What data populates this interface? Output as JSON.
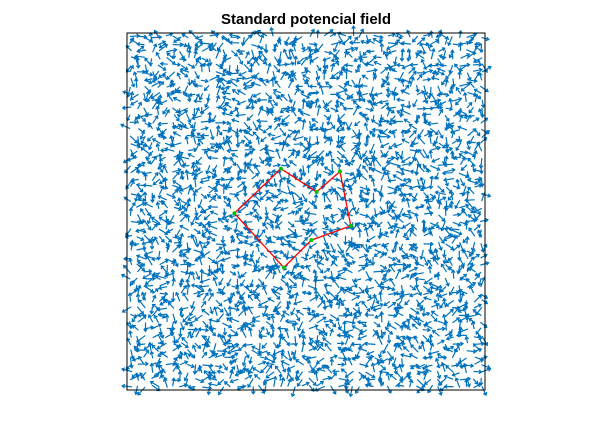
{
  "chart_data": {
    "type": "quiver",
    "title": "Standard potencial field",
    "xlim": [
      0,
      1
    ],
    "ylim": [
      0,
      1
    ],
    "axis_ticks": false,
    "grid": false,
    "box": true,
    "field": {
      "grid_nx": 50,
      "grid_ny": 50,
      "arrow_length": 0.026,
      "direction": "random",
      "random_seed": 12345,
      "color": "#0072bd"
    },
    "polygon": {
      "color": "#ff0000",
      "vertex_color": "#00c000",
      "closed": true,
      "vertices": [
        {
          "x": 0.43,
          "y": 0.62
        },
        {
          "x": 0.53,
          "y": 0.555
        },
        {
          "x": 0.595,
          "y": 0.612
        },
        {
          "x": 0.625,
          "y": 0.46
        },
        {
          "x": 0.515,
          "y": 0.42
        },
        {
          "x": 0.438,
          "y": 0.343
        },
        {
          "x": 0.3,
          "y": 0.495
        }
      ]
    }
  }
}
